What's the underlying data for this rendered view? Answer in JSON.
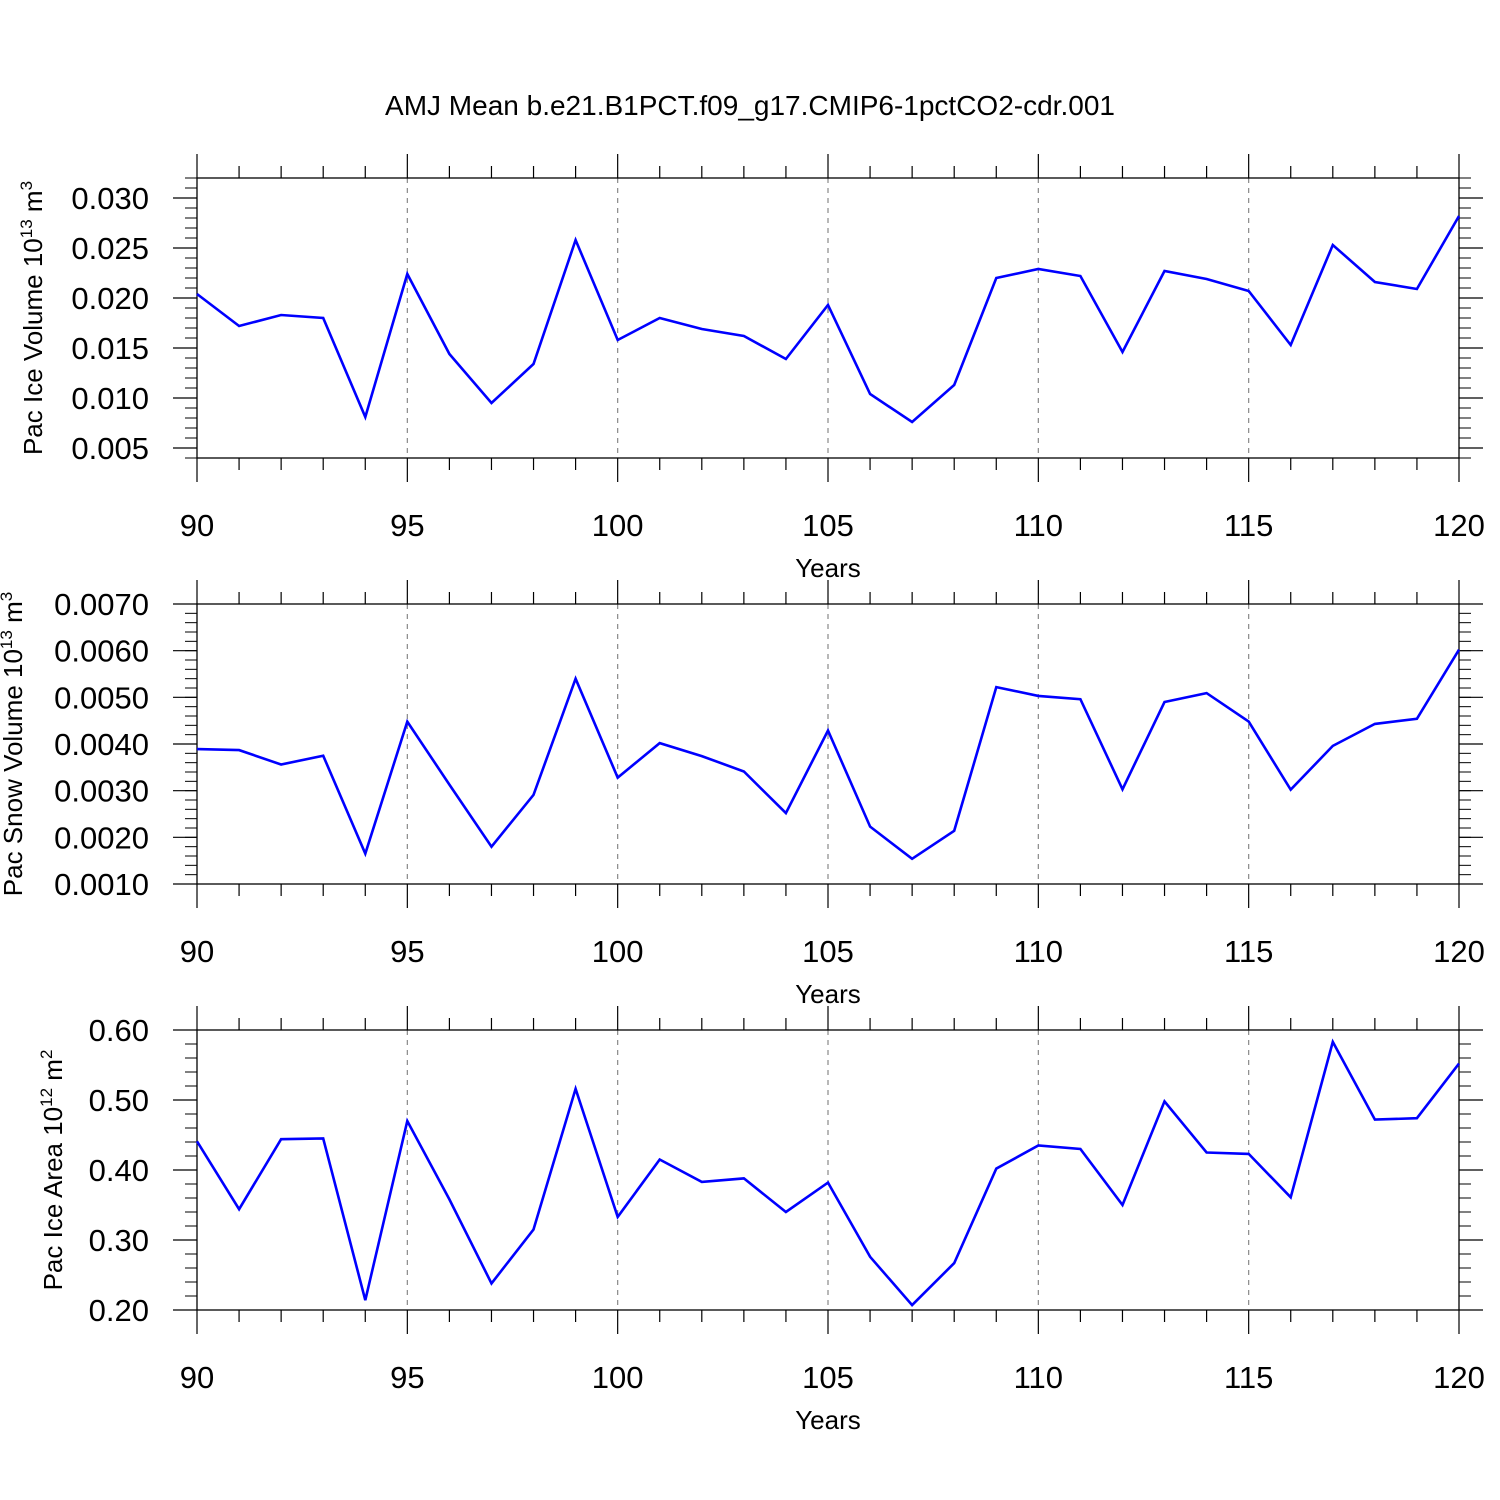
{
  "title": "AMJ Mean b.e21.B1PCT.f09_g17.CMIP6-1pctCO2-cdr.001",
  "line_color": "#0000ff",
  "chart_data": [
    {
      "type": "line",
      "title": "AMJ Mean b.e21.B1PCT.f09_g17.CMIP6-1pctCO2-cdr.001",
      "xlabel": "Years",
      "ylabel": {
        "base": "Pac Ice Volume 10",
        "exp1": "13",
        "mid": " m",
        "exp2": "3"
      },
      "xlim": [
        90,
        120
      ],
      "ylim": [
        0.004,
        0.032
      ],
      "xticks": [
        90,
        95,
        100,
        105,
        110,
        115,
        120
      ],
      "xtick_labels": [
        "90",
        "95",
        "100",
        "105",
        "110",
        "115",
        "120"
      ],
      "yticks": [
        0.005,
        0.01,
        0.015,
        0.02,
        0.025,
        0.03
      ],
      "ytick_labels": [
        "0.005",
        "0.010",
        "0.015",
        "0.020",
        "0.025",
        "0.030"
      ],
      "yminor_step": 0.001,
      "x": [
        90,
        91,
        92,
        93,
        94,
        95,
        96,
        97,
        98,
        99,
        100,
        101,
        102,
        103,
        104,
        105,
        106,
        107,
        108,
        109,
        110,
        111,
        112,
        113,
        114,
        115,
        116,
        117,
        118,
        119,
        120
      ],
      "series": [
        {
          "name": "Pac Ice Volume",
          "values": [
            0.0204,
            0.0172,
            0.0183,
            0.018,
            0.0081,
            0.0224,
            0.0144,
            0.0095,
            0.0134,
            0.0258,
            0.0158,
            0.018,
            0.0169,
            0.0162,
            0.0139,
            0.0193,
            0.0104,
            0.0076,
            0.0113,
            0.022,
            0.0229,
            0.0222,
            0.0146,
            0.0227,
            0.0219,
            0.0207,
            0.0153,
            0.0253,
            0.0216,
            0.0209,
            0.0282
          ]
        }
      ]
    },
    {
      "type": "line",
      "xlabel": "Years",
      "ylabel": {
        "base": "Pac Snow Volume 10",
        "exp1": "13",
        "mid": " m",
        "exp2": "3"
      },
      "xlim": [
        90,
        120
      ],
      "ylim": [
        0.001,
        0.007
      ],
      "xticks": [
        90,
        95,
        100,
        105,
        110,
        115,
        120
      ],
      "xtick_labels": [
        "90",
        "95",
        "100",
        "105",
        "110",
        "115",
        "120"
      ],
      "yticks": [
        0.001,
        0.002,
        0.003,
        0.004,
        0.005,
        0.006,
        0.007
      ],
      "ytick_labels": [
        "0.0010",
        "0.0020",
        "0.0030",
        "0.0040",
        "0.0050",
        "0.0060",
        "0.0070"
      ],
      "yminor_step": 0.0002,
      "x": [
        90,
        91,
        92,
        93,
        94,
        95,
        96,
        97,
        98,
        99,
        100,
        101,
        102,
        103,
        104,
        105,
        106,
        107,
        108,
        109,
        110,
        111,
        112,
        113,
        114,
        115,
        116,
        117,
        118,
        119,
        120
      ],
      "series": [
        {
          "name": "Pac Snow Volume",
          "values": [
            0.00389,
            0.00387,
            0.00356,
            0.00375,
            0.00165,
            0.00448,
            0.00313,
            0.0018,
            0.00291,
            0.0054,
            0.00328,
            0.00402,
            0.00374,
            0.00341,
            0.00252,
            0.00429,
            0.00223,
            0.00154,
            0.00214,
            0.00522,
            0.00503,
            0.00496,
            0.00303,
            0.0049,
            0.00509,
            0.00448,
            0.00302,
            0.00396,
            0.00443,
            0.00454,
            0.00602
          ]
        }
      ]
    },
    {
      "type": "line",
      "xlabel": "Years",
      "ylabel": {
        "base": "Pac Ice Area 10",
        "exp1": "12",
        "mid": " m",
        "exp2": "2"
      },
      "xlim": [
        90,
        120
      ],
      "ylim": [
        0.2,
        0.6
      ],
      "xticks": [
        90,
        95,
        100,
        105,
        110,
        115,
        120
      ],
      "xtick_labels": [
        "90",
        "95",
        "100",
        "105",
        "110",
        "115",
        "120"
      ],
      "yticks": [
        0.2,
        0.3,
        0.4,
        0.5,
        0.6
      ],
      "ytick_labels": [
        "0.20",
        "0.30",
        "0.40",
        "0.50",
        "0.60"
      ],
      "yminor_step": 0.02,
      "x": [
        90,
        91,
        92,
        93,
        94,
        95,
        96,
        97,
        98,
        99,
        100,
        101,
        102,
        103,
        104,
        105,
        106,
        107,
        108,
        109,
        110,
        111,
        112,
        113,
        114,
        115,
        116,
        117,
        118,
        119,
        120
      ],
      "series": [
        {
          "name": "Pac Ice Area",
          "values": [
            0.441,
            0.344,
            0.444,
            0.445,
            0.214,
            0.47,
            0.358,
            0.238,
            0.315,
            0.516,
            0.333,
            0.415,
            0.383,
            0.388,
            0.34,
            0.382,
            0.276,
            0.207,
            0.267,
            0.402,
            0.435,
            0.43,
            0.35,
            0.498,
            0.425,
            0.423,
            0.361,
            0.583,
            0.472,
            0.474,
            0.552
          ]
        }
      ]
    }
  ]
}
